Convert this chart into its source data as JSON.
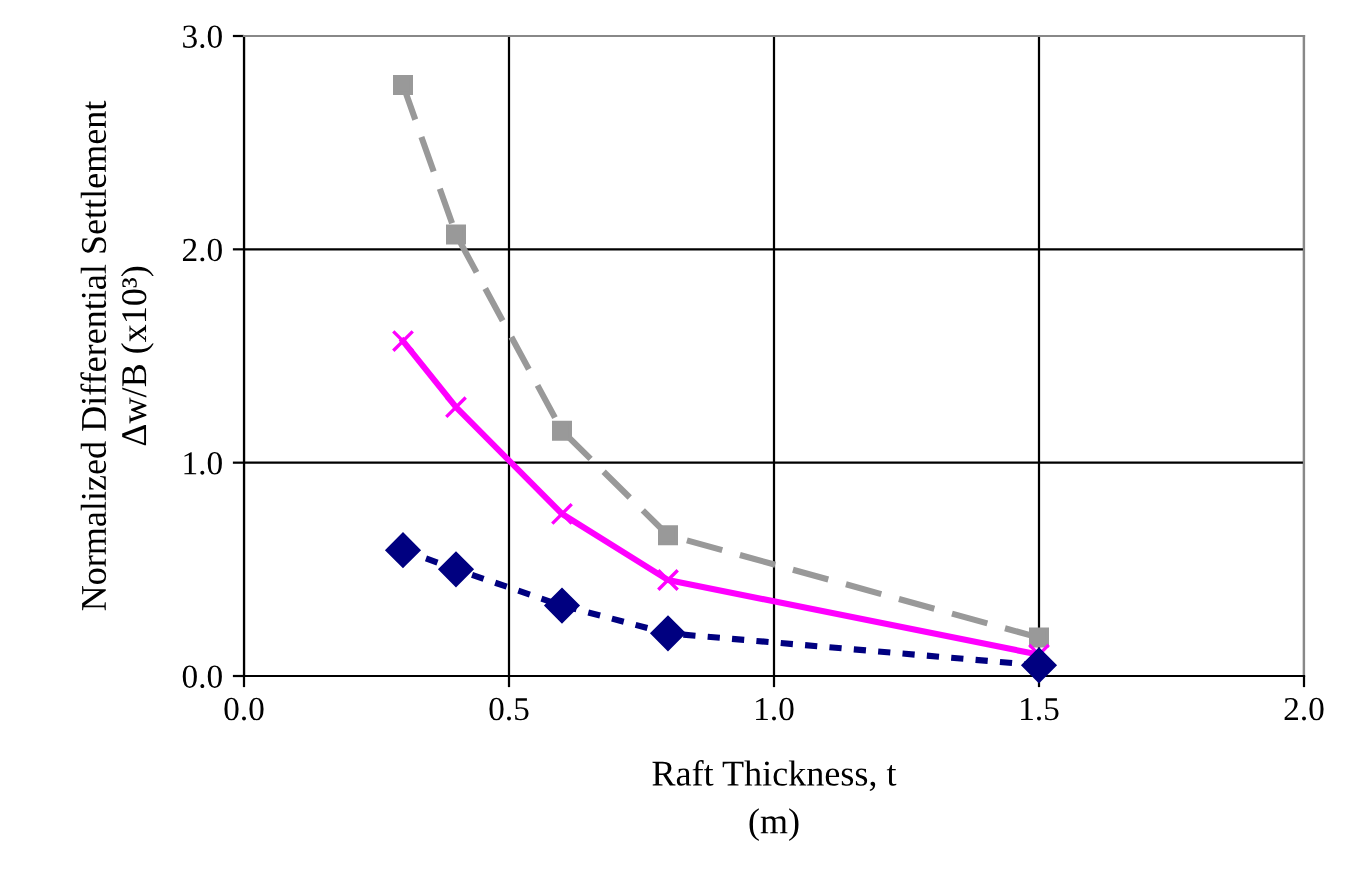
{
  "chart_data": {
    "type": "line",
    "xlabel": "Raft Thickness, t\n(m)",
    "ylabel": "Normalized Differential Settlement\nΔw/B (x10³)",
    "xlim": [
      0.0,
      2.0
    ],
    "xticks": [
      {
        "value": 0,
        "label": "0.0"
      },
      0.5,
      {
        "value": 1,
        "label": "1.0"
      },
      1.5,
      {
        "value": 2,
        "label": "2.0"
      }
    ],
    "ylim": [
      0.0,
      3.0
    ],
    "yticks": [
      {
        "value": 0,
        "label": "0.0"
      },
      {
        "value": 1,
        "label": "1.0"
      },
      {
        "value": 2,
        "label": "2.0"
      },
      {
        "value": 3,
        "label": "3.0"
      }
    ],
    "grid": true,
    "x": [
      0.3,
      0.4,
      0.6,
      0.8,
      1.5
    ],
    "series": [
      {
        "color": "#999999",
        "marker": "square",
        "line_style": "dashed",
        "values": [
          2.77,
          2.07,
          1.15,
          0.66,
          0.18
        ]
      },
      {
        "color": "#ff00ff",
        "marker": "cross",
        "line_style": "solid",
        "values": [
          1.57,
          1.26,
          0.76,
          0.45,
          0.1
        ]
      },
      {
        "color": "#000080",
        "marker": "diamond",
        "line_style": "dotted",
        "values": [
          0.59,
          0.5,
          0.33,
          0.2,
          0.05
        ]
      }
    ]
  }
}
